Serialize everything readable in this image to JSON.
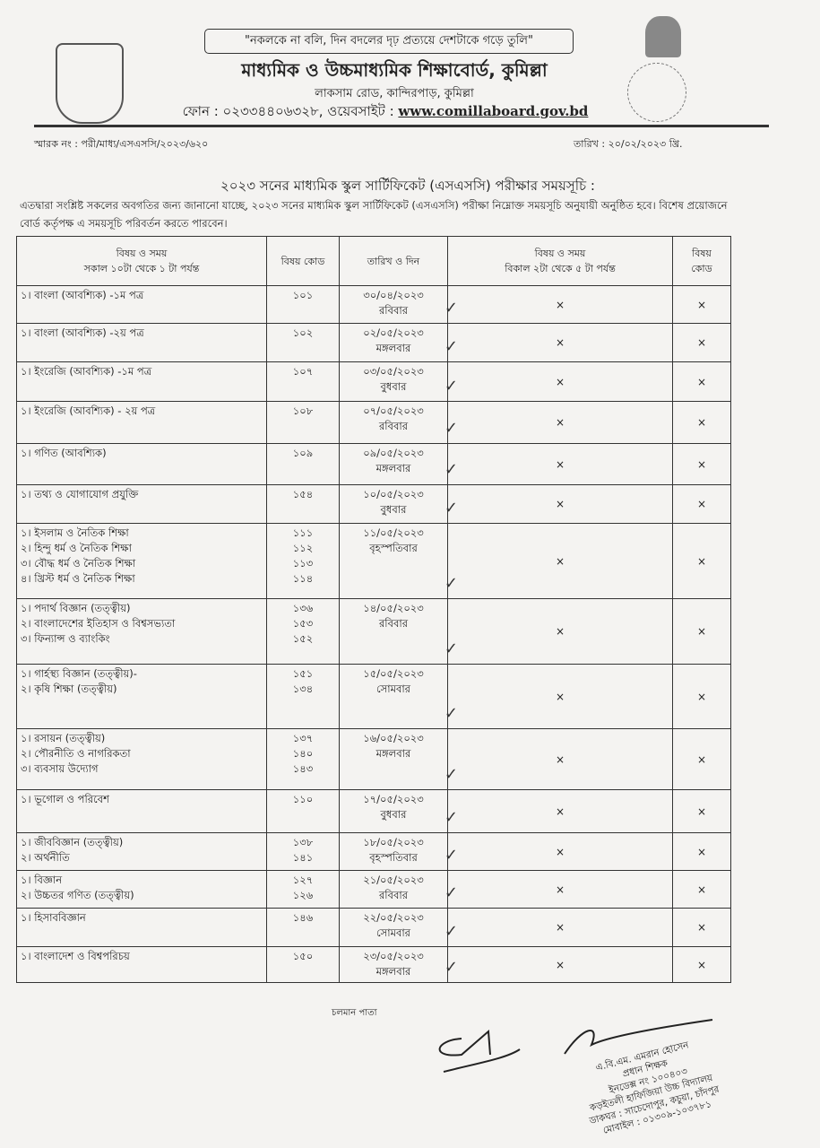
{
  "header": {
    "motto": "\"নকলকে না বলি, দিন বদলের দৃঢ় প্রত্যয়ে দেশটাকে গড়ে তুলি\"",
    "board_name": "মাধ্যমিক ও উচ্চমাধ্যমিক শিক্ষাবোর্ড, কুমিল্লা",
    "address": "লাকসাম রোড, কান্দিরপাড়, কুমিল্লা",
    "phone": "ফোন : ০২৩৩৪৪০৬৩২৮, ওয়েবসাইট : ",
    "website": "www.comillaboard.gov.bd",
    "memo_no": "স্মারক নং : পরী/মাধ্য/এসএসসি/২০২৩/৬২০",
    "date": "তারিখ : ২০/০২/২০২৩ খ্রি."
  },
  "title": "২০২৩ সনের মাধ্যমিক স্কুল সার্টিফিকেট (এসএসসি) পরীক্ষার সময়সূচি :",
  "intro": "এতদ্বারা সংশ্লিষ্ট সকলের অবগতির জন্য জানানো যাচ্ছে, ২০২৩ সনের মাধ্যমিক স্কুল সার্টিফিকেট (এসএসসি) পরীক্ষা নিম্নোক্ত সময়সূচি অনুযায়ী অনুষ্ঠিত হবে। বিশেষ প্রয়োজনে বোর্ড কর্তৃপক্ষ এ সময়সূচি পরিবর্তন করতে পারবেন।",
  "table": {
    "headers": {
      "morning_subject": "বিষয় ও সময়",
      "morning_time": "সকাল ১০টা থেকে ১ টা পর্যন্ত",
      "code": "বিষয় কোড",
      "date_day": "তারিখ ও দিন",
      "afternoon_subject": "বিষয় ও সময়",
      "afternoon_time": "বিকাল ২টা থেকে ৫ টা পর্যন্ত",
      "afternoon_code_1": "বিষয়",
      "afternoon_code_2": "কোড"
    },
    "empty_mark": "×",
    "check_mark": "✓",
    "rows": [
      {
        "subjects": [
          "১। বাংলা (আবশ্যিক) -১ম পত্র"
        ],
        "codes": [
          "১০১"
        ],
        "date": "৩০/০৪/২০২৩",
        "day": "রবিবার"
      },
      {
        "subjects": [
          "১। বাংলা (আবশ্যিক) -২য় পত্র"
        ],
        "codes": [
          "১০২"
        ],
        "date": "০২/০৫/২০২৩",
        "day": "মঙ্গলবার"
      },
      {
        "subjects": [
          "১। ইংরেজি (আবশ্যিক) -১ম পত্র"
        ],
        "codes": [
          "১০৭"
        ],
        "date": "০৩/০৫/২০২৩",
        "day": "বুধবার"
      },
      {
        "subjects": [
          "১। ইংরেজি (আবশ্যিক) - ২য় পত্র"
        ],
        "codes": [
          "১০৮"
        ],
        "date": "০৭/০৫/২০২৩",
        "day": "রবিবার"
      },
      {
        "subjects": [
          "১। গণিত (আবশ্যিক)"
        ],
        "codes": [
          "১০৯"
        ],
        "date": "০৯/০৫/২০২৩",
        "day": "মঙ্গলবার"
      },
      {
        "subjects": [
          "১। তথ্য ও যোগাযোগ প্রযুক্তি"
        ],
        "codes": [
          "১৫৪"
        ],
        "date": "১০/০৫/২০২৩",
        "day": "বুধবার"
      },
      {
        "subjects": [
          "১। ইসলাম ও নৈতিক শিক্ষা",
          "২। হিন্দু ধর্ম ও নৈতিক শিক্ষা",
          "৩। বৌদ্ধ ধর্ম ও নৈতিক শিক্ষা",
          "৪। খ্রিস্ট ধর্ম ও নৈতিক শিক্ষা"
        ],
        "codes": [
          "১১১",
          "১১২",
          "১১৩",
          "১১৪"
        ],
        "date": "১১/০৫/২০২৩",
        "day": "বৃহস্পতিবার"
      },
      {
        "subjects": [
          "১। পদার্থ বিজ্ঞান (তত্ত্বীয়)",
          "২। বাংলাদেশের ইতিহাস ও বিশ্বসভ্যতা",
          "৩। ফিন্যান্স ও ব্যাংকিং"
        ],
        "codes": [
          "১৩৬",
          "১৫৩",
          "১৫২"
        ],
        "date": "১৪/০৫/২০২৩",
        "day": "রবিবার"
      },
      {
        "subjects": [
          "১। গার্হস্থ্য বিজ্ঞান (তত্ত্বীয়)-",
          "২। কৃষি শিক্ষা (তত্ত্বীয়)"
        ],
        "codes": [
          "১৫১",
          "১৩৪"
        ],
        "date": "১৫/০৫/২০২৩",
        "day": "সোমবার"
      },
      {
        "subjects": [
          "১। রসায়ন (তত্ত্বীয়)",
          "২। পৌরনীতি ও নাগরিকতা",
          "৩। ব্যবসায় উদ্যোগ"
        ],
        "codes": [
          "১৩৭",
          "১৪০",
          "১৪৩"
        ],
        "date": "১৬/০৫/২০২৩",
        "day": "মঙ্গলবার"
      },
      {
        "subjects": [
          "১। ভূগোল ও পরিবেশ"
        ],
        "codes": [
          "১১০"
        ],
        "date": "১৭/০৫/২০২৩",
        "day": "বুধবার"
      },
      {
        "subjects": [
          "১। জীববিজ্ঞান (তত্ত্বীয়)",
          "২। অর্থনীতি"
        ],
        "codes": [
          "১৩৮",
          "১৪১"
        ],
        "date": "১৮/০৫/২০২৩",
        "day": "বৃহস্পতিবার"
      },
      {
        "subjects": [
          "১। বিজ্ঞান",
          "২। উচ্চতর গণিত (তত্ত্বীয়)"
        ],
        "codes": [
          "১২৭",
          "১২৬"
        ],
        "date": "২১/০৫/২০২৩",
        "day": "রবিবার"
      },
      {
        "subjects": [
          "১। হিসাববিজ্ঞান"
        ],
        "codes": [
          "১৪৬"
        ],
        "date": "২২/০৫/২০২৩",
        "day": "সোমবার"
      },
      {
        "subjects": [
          "১। বাংলাদেশ ও বিশ্বপরিচয়"
        ],
        "codes": [
          "১৫০"
        ],
        "date": "২৩/০৫/২০২৩",
        "day": "মঙ্গলবার"
      }
    ]
  },
  "footer": {
    "continued": "চলমান পাতা",
    "stamp": {
      "name": "এ.বি.এম. এমরান হোসেন",
      "designation": "প্রধান শিক্ষক",
      "index": "ইনডেক্স নং ১০০৪০৩",
      "school": "কড়ইতলী হাফিজিয়া উচ্চ বিদ্যালয়",
      "post": "ডাকঘর : সাচেদোপুর, কচুয়া, চাঁদপুর",
      "mobile": "মোবাইল : ০১৩০৯-১০৩৭৮১"
    }
  }
}
